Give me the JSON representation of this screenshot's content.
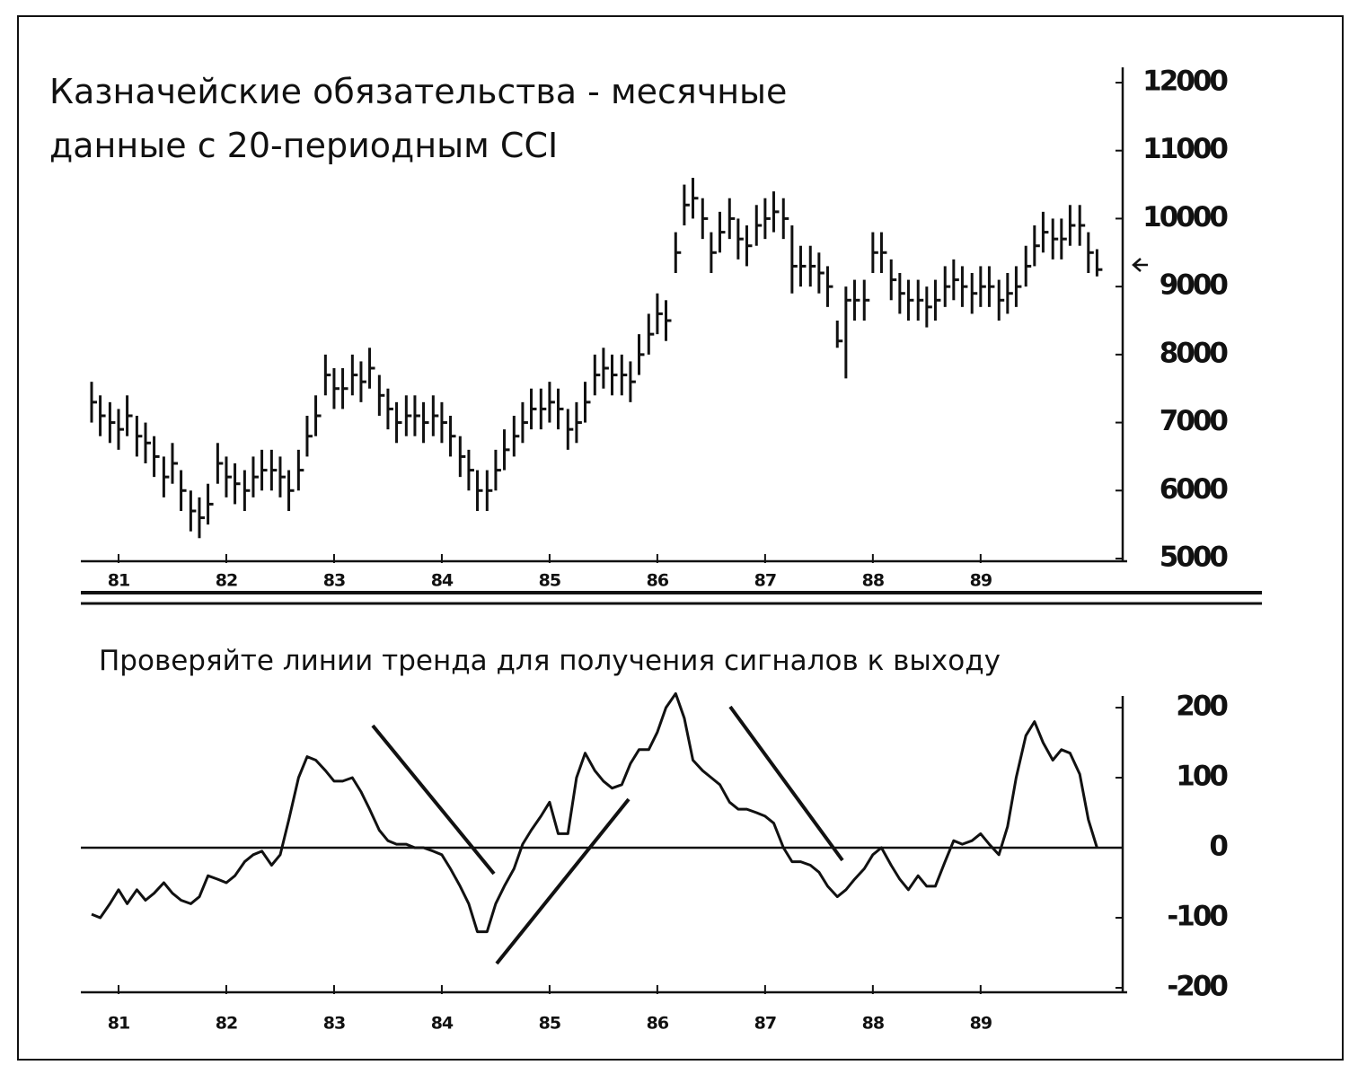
{
  "chart_data": [
    {
      "type": "hlc",
      "title": [
        "Казначейские обязательства - месячные",
        "данные с  20-периодным CCI"
      ],
      "x": [
        80.75,
        80.83,
        80.92,
        81,
        81.08,
        81.17,
        81.25,
        81.33,
        81.42,
        81.5,
        81.58,
        81.67,
        81.75,
        81.83,
        81.92,
        82,
        82.08,
        82.17,
        82.25,
        82.33,
        82.42,
        82.5,
        82.58,
        82.67,
        82.75,
        82.83,
        82.92,
        83,
        83.08,
        83.17,
        83.25,
        83.33,
        83.42,
        83.5,
        83.58,
        83.67,
        83.75,
        83.83,
        83.92,
        84,
        84.08,
        84.17,
        84.25,
        84.33,
        84.42,
        84.5,
        84.58,
        84.67,
        84.75,
        84.83,
        84.92,
        85,
        85.08,
        85.17,
        85.25,
        85.33,
        85.42,
        85.5,
        85.58,
        85.67,
        85.75,
        85.83,
        85.92,
        86,
        86.08,
        86.17,
        86.25,
        86.33,
        86.42,
        86.5,
        86.58,
        86.67,
        86.75,
        86.83,
        86.92,
        87,
        87.08,
        87.17,
        87.25,
        87.33,
        87.42,
        87.5,
        87.58,
        87.67,
        87.75,
        87.83,
        87.92,
        88,
        88.08,
        88.17,
        88.25,
        88.33,
        88.42,
        88.5,
        88.58,
        88.67,
        88.75,
        88.83,
        88.92,
        89,
        89.08,
        89.17,
        89.25,
        89.33,
        89.42,
        89.5,
        89.58,
        89.67,
        89.75,
        89.83,
        89.92,
        90,
        90.08
      ],
      "high": [
        7600,
        7400,
        7300,
        7200,
        7400,
        7100,
        7000,
        6800,
        6500,
        6700,
        6300,
        6000,
        5900,
        6100,
        6700,
        6500,
        6400,
        6300,
        6500,
        6600,
        6600,
        6500,
        6300,
        6600,
        7100,
        7400,
        8000,
        7800,
        7800,
        8000,
        7900,
        8100,
        7700,
        7500,
        7300,
        7400,
        7400,
        7300,
        7400,
        7300,
        7100,
        6800,
        6600,
        6300,
        6300,
        6600,
        6900,
        7100,
        7300,
        7500,
        7500,
        7600,
        7500,
        7200,
        7300,
        7600,
        8000,
        8100,
        8000,
        8000,
        7900,
        8300,
        8600,
        8900,
        8800,
        9800,
        10500,
        10600,
        10300,
        9800,
        10100,
        10300,
        10000,
        9900,
        10200,
        10300,
        10400,
        10300,
        9900,
        9600,
        9600,
        9500,
        9300,
        8500,
        9000,
        9100,
        9100,
        9800,
        9800,
        9400,
        9200,
        9100,
        9100,
        9000,
        9100,
        9300,
        9400,
        9300,
        9200,
        9300,
        9300,
        9100,
        9200,
        9300,
        9600,
        9900,
        10100,
        10000,
        10000,
        10200,
        10200,
        9800,
        9550
      ],
      "low": [
        7000,
        6800,
        6700,
        6600,
        6800,
        6500,
        6400,
        6200,
        5900,
        6100,
        5700,
        5400,
        5300,
        5500,
        6100,
        5900,
        5800,
        5700,
        5900,
        6000,
        6000,
        5900,
        5700,
        6000,
        6500,
        6800,
        7400,
        7200,
        7200,
        7400,
        7300,
        7500,
        7100,
        6900,
        6700,
        6800,
        6800,
        6700,
        6800,
        6700,
        6500,
        6200,
        6000,
        5700,
        5700,
        6000,
        6300,
        6500,
        6700,
        6900,
        6900,
        7000,
        6900,
        6600,
        6700,
        7000,
        7400,
        7500,
        7400,
        7400,
        7300,
        7700,
        8000,
        8300,
        8200,
        9200,
        9900,
        10000,
        9700,
        9200,
        9500,
        9700,
        9400,
        9300,
        9600,
        9700,
        9800,
        9700,
        8900,
        9000,
        9000,
        8900,
        8700,
        8100,
        7650,
        8500,
        8500,
        9200,
        9200,
        8800,
        8600,
        8500,
        8500,
        8400,
        8500,
        8700,
        8800,
        8700,
        8600,
        8700,
        8700,
        8500,
        8600,
        8700,
        9000,
        9300,
        9500,
        9400,
        9400,
        9600,
        9600,
        9200,
        9150
      ],
      "close": [
        7300,
        7100,
        7000,
        6900,
        7100,
        6800,
        6700,
        6500,
        6200,
        6400,
        6000,
        5700,
        5600,
        5800,
        6400,
        6200,
        6100,
        6000,
        6200,
        6300,
        6300,
        6200,
        6000,
        6300,
        6800,
        7100,
        7700,
        7500,
        7500,
        7700,
        7600,
        7800,
        7400,
        7200,
        7000,
        7100,
        7100,
        7000,
        7100,
        7000,
        6800,
        6500,
        6300,
        6000,
        6000,
        6300,
        6600,
        6800,
        7000,
        7200,
        7200,
        7300,
        7200,
        6900,
        7000,
        7300,
        7700,
        7800,
        7700,
        7700,
        7600,
        8000,
        8300,
        8600,
        8500,
        9500,
        10200,
        10300,
        10000,
        9500,
        9800,
        10000,
        9700,
        9600,
        9900,
        10000,
        10100,
        10000,
        9300,
        9300,
        9300,
        9200,
        9000,
        8200,
        8800,
        8800,
        8800,
        9500,
        9500,
        9100,
        8900,
        8800,
        8800,
        8700,
        8800,
        9000,
        9100,
        9000,
        8900,
        9000,
        9000,
        8800,
        8900,
        9000,
        9300,
        9600,
        9800,
        9700,
        9700,
        9900,
        9900,
        9500,
        9250
      ],
      "color": "#111111",
      "xlim": [
        80.65,
        90.36
      ],
      "xticks": [
        81,
        82,
        83,
        84,
        85,
        86,
        87,
        88,
        89
      ],
      "ylim": [
        5000,
        12000
      ],
      "yticks": [
        5000,
        6000,
        7000,
        8000,
        9000,
        10000,
        11000,
        12000
      ]
    },
    {
      "type": "line",
      "title": "Проверяйте линии тренда для получения сигналов к выходу",
      "x": [
        80.75,
        80.83,
        80.92,
        81,
        81.08,
        81.17,
        81.25,
        81.33,
        81.42,
        81.5,
        81.58,
        81.67,
        81.75,
        81.83,
        81.92,
        82,
        82.08,
        82.17,
        82.25,
        82.33,
        82.42,
        82.5,
        82.58,
        82.67,
        82.75,
        82.83,
        82.92,
        83,
        83.08,
        83.17,
        83.25,
        83.33,
        83.42,
        83.5,
        83.58,
        83.67,
        83.75,
        83.83,
        83.92,
        84,
        84.08,
        84.17,
        84.25,
        84.33,
        84.42,
        84.5,
        84.58,
        84.67,
        84.75,
        84.83,
        84.92,
        85,
        85.08,
        85.17,
        85.25,
        85.33,
        85.42,
        85.5,
        85.58,
        85.67,
        85.75,
        85.83,
        85.92,
        86,
        86.08,
        86.17,
        86.25,
        86.33,
        86.42,
        86.5,
        86.58,
        86.67,
        86.75,
        86.83,
        86.92,
        87,
        87.08,
        87.17,
        87.25,
        87.33,
        87.42,
        87.5,
        87.58,
        87.67,
        87.75,
        87.83,
        87.92,
        88,
        88.08,
        88.17,
        88.25,
        88.33,
        88.42,
        88.5,
        88.58,
        88.67,
        88.75,
        88.83,
        88.92,
        89,
        89.08,
        89.17,
        89.25,
        89.33,
        89.42,
        89.5,
        89.58,
        89.67,
        89.75,
        89.83,
        89.92,
        90,
        90.08
      ],
      "values": [
        -95,
        -100,
        -80,
        -60,
        -80,
        -60,
        -75,
        -65,
        -50,
        -65,
        -75,
        -80,
        -70,
        -40,
        -45,
        -50,
        -40,
        -20,
        -10,
        -5,
        -25,
        -10,
        40,
        100,
        130,
        125,
        110,
        95,
        95,
        100,
        80,
        55,
        25,
        10,
        5,
        5,
        0,
        0,
        -5,
        -10,
        -30,
        -55,
        -80,
        -120,
        -120,
        -80,
        -55,
        -30,
        5,
        25,
        45,
        65,
        20,
        20,
        100,
        135,
        110,
        95,
        85,
        90,
        120,
        140,
        140,
        165,
        200,
        220,
        185,
        125,
        110,
        100,
        90,
        65,
        55,
        55,
        50,
        45,
        35,
        0,
        -20,
        -20,
        -25,
        -35,
        -55,
        -70,
        -60,
        -45,
        -30,
        -10,
        0,
        -25,
        -45,
        -60,
        -40,
        -55,
        -55,
        -20,
        10,
        5,
        10,
        20,
        5,
        -10,
        30,
        100,
        160,
        180,
        150,
        125,
        140,
        135,
        105,
        40,
        0
      ],
      "color": "#111111",
      "xlim": [
        80.65,
        90.36
      ],
      "xticks": [
        81,
        82,
        83,
        84,
        85,
        86,
        87,
        88,
        89
      ],
      "ylim": [
        -200,
        200
      ],
      "yticks": [
        -200,
        -100,
        0,
        100,
        200
      ]
    }
  ]
}
